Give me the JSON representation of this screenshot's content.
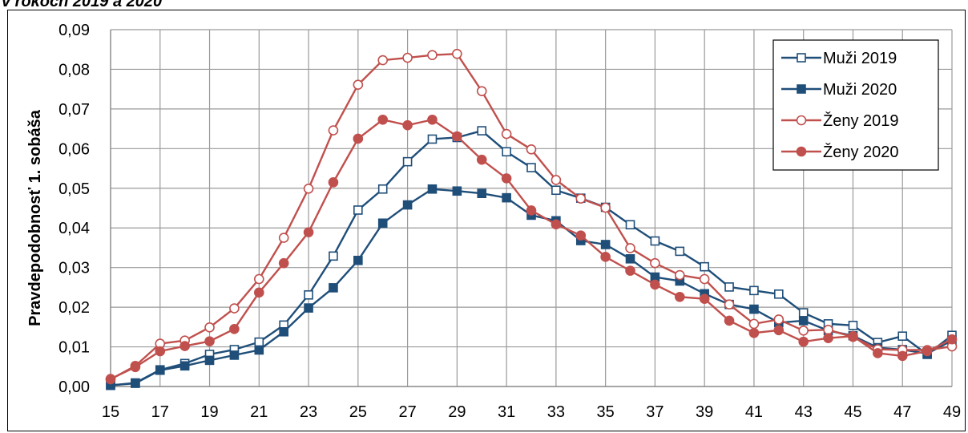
{
  "title": "v rokoch 2019 a 2020",
  "chart_data": {
    "type": "line",
    "ylabel": "Pravdepodobnosť 1. sobáša",
    "xlabel": "",
    "ylim": [
      0,
      0.09
    ],
    "ytick_values": [
      0,
      0.01,
      0.02,
      0.03,
      0.04,
      0.05,
      0.06,
      0.07,
      0.08,
      0.09
    ],
    "ytick_labels": [
      "0,00",
      "0,01",
      "0,02",
      "0,03",
      "0,04",
      "0,05",
      "0,06",
      "0,07",
      "0,08",
      "0,09"
    ],
    "xlim": [
      15,
      49
    ],
    "xtick_labels": [
      "15",
      "17",
      "19",
      "21",
      "23",
      "25",
      "27",
      "29",
      "31",
      "33",
      "35",
      "37",
      "39",
      "41",
      "43",
      "45",
      "47",
      "49"
    ],
    "grid": true,
    "legend_position": "top-right",
    "x": [
      15,
      16,
      17,
      18,
      19,
      20,
      21,
      22,
      23,
      24,
      25,
      26,
      27,
      28,
      29,
      30,
      31,
      32,
      33,
      34,
      35,
      36,
      37,
      38,
      39,
      40,
      41,
      42,
      43,
      44,
      45,
      46,
      47,
      48,
      49
    ],
    "series": [
      {
        "name": "Muži 2019",
        "color": "#1F4E79",
        "marker": "square-open",
        "values": [
          0.0003,
          0.0009,
          0.0042,
          0.0058,
          0.0081,
          0.0093,
          0.0112,
          0.0155,
          0.0231,
          0.0329,
          0.0445,
          0.0498,
          0.0567,
          0.0624,
          0.0628,
          0.0645,
          0.0592,
          0.0552,
          0.0495,
          0.0475,
          0.0452,
          0.0408,
          0.0367,
          0.0341,
          0.0302,
          0.0251,
          0.0242,
          0.0233,
          0.0186,
          0.0158,
          0.0154,
          0.0111,
          0.0127,
          0.0081,
          0.0129
        ]
      },
      {
        "name": "Muži 2020",
        "color": "#1F4E79",
        "marker": "square-filled",
        "values": [
          0.0003,
          0.0008,
          0.0041,
          0.0052,
          0.0066,
          0.0079,
          0.0092,
          0.0138,
          0.0198,
          0.0249,
          0.0318,
          0.0412,
          0.0458,
          0.0498,
          0.0493,
          0.0487,
          0.0476,
          0.0432,
          0.0418,
          0.0368,
          0.0358,
          0.0322,
          0.0276,
          0.0266,
          0.0234,
          0.0207,
          0.0195,
          0.0161,
          0.0166,
          0.0141,
          0.0128,
          0.0098,
          0.0093,
          0.0083,
          0.0116
        ]
      },
      {
        "name": "Ženy 2019",
        "color": "#C0504D",
        "marker": "circle-open",
        "values": [
          0.0018,
          0.0052,
          0.0108,
          0.0116,
          0.0149,
          0.0197,
          0.0271,
          0.0375,
          0.0499,
          0.0646,
          0.0761,
          0.0823,
          0.0829,
          0.0836,
          0.0839,
          0.0745,
          0.0637,
          0.0598,
          0.0521,
          0.0474,
          0.0451,
          0.0349,
          0.0311,
          0.0281,
          0.0271,
          0.0207,
          0.0158,
          0.0169,
          0.0141,
          0.0143,
          0.0125,
          0.0094,
          0.0092,
          0.0092,
          0.0101
        ]
      },
      {
        "name": "Ženy 2020",
        "color": "#C0504D",
        "marker": "circle-filled",
        "values": [
          0.0019,
          0.0049,
          0.0089,
          0.0102,
          0.0114,
          0.0145,
          0.0237,
          0.0311,
          0.0389,
          0.0515,
          0.0625,
          0.0673,
          0.0659,
          0.0673,
          0.0631,
          0.0572,
          0.0525,
          0.0444,
          0.0409,
          0.0381,
          0.0327,
          0.0292,
          0.0257,
          0.0226,
          0.0221,
          0.0166,
          0.0135,
          0.0142,
          0.0113,
          0.0122,
          0.0127,
          0.0084,
          0.0077,
          0.0089,
          0.0119
        ]
      }
    ]
  }
}
